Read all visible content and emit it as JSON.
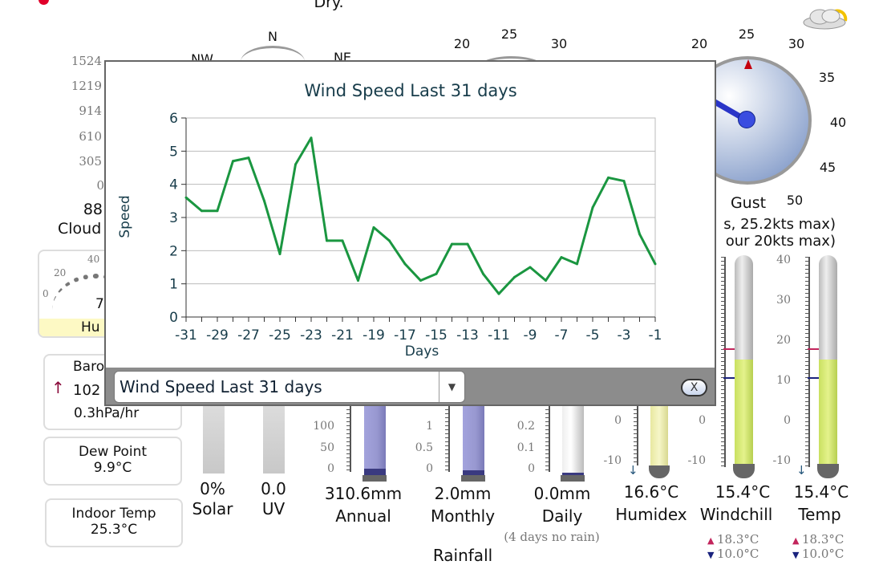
{
  "top": {
    "condition_text": "Dry.",
    "weather_icon": "partly-cloudy-icon",
    "alert_dot_color": "#e0002a"
  },
  "compass": {
    "n": "N",
    "nw": "NW",
    "ne": "NE"
  },
  "wind_gauge": {
    "ticks": [
      "20",
      "25",
      "30"
    ]
  },
  "gust_gauge": {
    "ticks": [
      "20",
      "25",
      "30",
      "35",
      "40",
      "45",
      "50"
    ],
    "label": "Gust",
    "line1": "s, 25.2kts max)",
    "line2": "our 20kts max)"
  },
  "cloud": {
    "ticks": [
      "1524",
      "1219",
      "914",
      "610",
      "305",
      "0"
    ],
    "value": "88",
    "label": "Cloud"
  },
  "humidity": {
    "ticks": [
      "0",
      "20",
      "40"
    ],
    "value": "7",
    "label": "Hu"
  },
  "barometer": {
    "label": "Baro",
    "value": "102",
    "trend": "0.3hPa/hr",
    "trend_icon": "arrow-up-icon"
  },
  "dew_point": {
    "label": "Dew Point",
    "value": "9.9°C"
  },
  "indoor_temp": {
    "label": "Indoor Temp",
    "value": "25.3°C"
  },
  "solar": {
    "value": "0%",
    "label": "Solar"
  },
  "uv": {
    "value": "0.0",
    "label": "UV"
  },
  "rain": {
    "annual": {
      "value": "310.6mm",
      "label": "Annual",
      "ticks": [
        "100",
        "50",
        "0"
      ]
    },
    "monthly": {
      "value": "2.0mm",
      "label": "Monthly",
      "ticks": [
        "1",
        "0.5",
        "0"
      ]
    },
    "daily": {
      "value": "0.0mm",
      "label": "Daily",
      "ticks": [
        "0.2",
        "0.1",
        "0"
      ],
      "note": "(4 days no rain)"
    },
    "title": "Rainfall"
  },
  "humidex": {
    "value": "16.6°C",
    "label": "Humidex",
    "ticks": [
      "0",
      "-10"
    ]
  },
  "windchill": {
    "value": "15.4°C",
    "label": "Windchill",
    "high": "18.3°C",
    "low": "10.0°C",
    "ticks": [
      "0",
      "-10"
    ],
    "level_c": 15.4
  },
  "temp": {
    "value": "15.4°C",
    "label": "Temp",
    "high": "18.3°C",
    "low": "10.0°C",
    "ticks": [
      "40",
      "30",
      "20",
      "10",
      "0",
      "-10"
    ],
    "level_c": 15.4
  },
  "popup": {
    "select_value": "Wind Speed Last 31 days",
    "close_label": "X"
  },
  "chart_data": {
    "type": "line",
    "title": "Wind Speed Last 31 days",
    "xlabel": "Days",
    "ylabel": "Speed",
    "x": [
      -31,
      -30,
      -29,
      -28,
      -27,
      -26,
      -25,
      -24,
      -23,
      -22,
      -21,
      -20,
      -19,
      -18,
      -17,
      -16,
      -15,
      -14,
      -13,
      -12,
      -11,
      -10,
      -9,
      -8,
      -7,
      -6,
      -5,
      -4,
      -3,
      -2,
      -1
    ],
    "values": [
      3.6,
      3.2,
      3.2,
      4.7,
      4.8,
      3.5,
      1.9,
      4.6,
      5.4,
      2.3,
      2.3,
      1.1,
      2.7,
      2.3,
      1.6,
      1.1,
      1.3,
      2.2,
      2.2,
      1.3,
      0.7,
      1.2,
      1.5,
      1.1,
      1.8,
      1.6,
      3.3,
      4.2,
      4.1,
      2.5,
      1.6
    ],
    "xticks": [
      "-31",
      "-29",
      "-27",
      "-25",
      "-23",
      "-21",
      "-19",
      "-17",
      "-15",
      "-13",
      "-11",
      "-9",
      "-7",
      "-5",
      "-3",
      "-1"
    ],
    "yticks": [
      "0",
      "1",
      "2",
      "3",
      "4",
      "5",
      "6"
    ],
    "xlim": [
      -31,
      -1
    ],
    "ylim": [
      0,
      6
    ],
    "grid": true,
    "line_color": "#1a9640"
  }
}
